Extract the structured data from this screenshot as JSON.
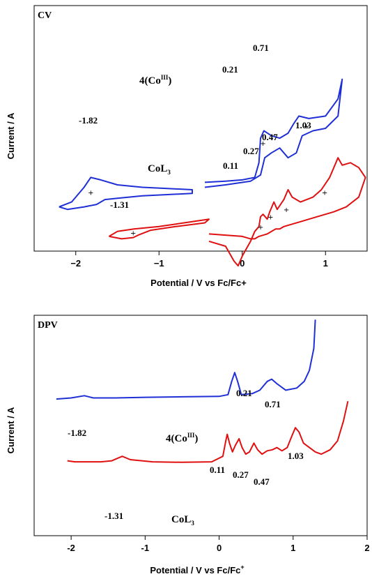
{
  "chart_data": [
    {
      "type": "line",
      "title": "CV",
      "xlabel": "Potential / V vs Fc/Fc+",
      "ylabel": "Current / A",
      "xlim": [
        -2.5,
        1.5
      ],
      "x_ticks": [
        "−2",
        "−1",
        "0",
        "1"
      ],
      "x_tick_values": [
        -2,
        -1,
        0,
        1
      ],
      "series": [
        {
          "name": "4(Co",
          "name_sup": "III",
          "name_suffix": ")",
          "color": "#1f2fd6",
          "points": [
            [
              -2.2,
              0.18
            ],
            [
              -2.05,
              0.2
            ],
            [
              -1.9,
              0.26
            ],
            [
              -1.82,
              0.3
            ],
            [
              -1.7,
              0.29
            ],
            [
              -1.5,
              0.27
            ],
            [
              -1.2,
              0.26
            ],
            [
              -0.9,
              0.255
            ],
            [
              -0.6,
              0.25
            ],
            [
              -0.6,
              0.235
            ],
            [
              -0.9,
              0.23
            ],
            [
              -1.2,
              0.225
            ],
            [
              -1.5,
              0.215
            ],
            [
              -1.65,
              0.21
            ],
            [
              -1.75,
              0.19
            ],
            [
              -1.9,
              0.18
            ],
            [
              -2.1,
              0.17
            ],
            [
              -2.2,
              0.18
            ]
          ],
          "points2": [
            [
              -0.45,
              0.28
            ],
            [
              -0.2,
              0.285
            ],
            [
              0.0,
              0.29
            ],
            [
              0.15,
              0.3
            ],
            [
              0.2,
              0.36
            ],
            [
              0.22,
              0.46
            ],
            [
              0.26,
              0.49
            ],
            [
              0.35,
              0.47
            ],
            [
              0.45,
              0.46
            ],
            [
              0.55,
              0.48
            ],
            [
              0.62,
              0.52
            ],
            [
              0.68,
              0.55
            ],
            [
              0.8,
              0.54
            ],
            [
              1.0,
              0.55
            ],
            [
              1.15,
              0.62
            ],
            [
              1.2,
              0.7
            ],
            [
              1.15,
              0.55
            ],
            [
              1.0,
              0.5
            ],
            [
              0.85,
              0.49
            ],
            [
              0.72,
              0.47
            ],
            [
              0.65,
              0.4
            ],
            [
              0.55,
              0.38
            ],
            [
              0.45,
              0.42
            ],
            [
              0.35,
              0.4
            ],
            [
              0.27,
              0.38
            ],
            [
              0.22,
              0.31
            ],
            [
              0.1,
              0.285
            ],
            [
              -0.2,
              0.27
            ],
            [
              -0.45,
              0.26
            ]
          ]
        },
        {
          "name": "CoL",
          "name_sub": "3",
          "color": "#e01010",
          "points": [
            [
              -1.6,
              0.06
            ],
            [
              -1.5,
              0.08
            ],
            [
              -1.3,
              0.09
            ],
            [
              -1.0,
              0.1
            ],
            [
              -0.7,
              0.115
            ],
            [
              -0.4,
              0.13
            ],
            [
              -0.45,
              0.115
            ],
            [
              -0.8,
              0.1
            ],
            [
              -1.1,
              0.085
            ],
            [
              -1.25,
              0.065
            ],
            [
              -1.31,
              0.055
            ],
            [
              -1.45,
              0.05
            ],
            [
              -1.6,
              0.06
            ]
          ],
          "points2": [
            [
              -0.4,
              0.04
            ],
            [
              -0.2,
              0.02
            ],
            [
              -0.1,
              -0.04
            ],
            [
              -0.05,
              -0.06
            ],
            [
              0.0,
              -0.02
            ],
            [
              0.1,
              0.04
            ],
            [
              0.15,
              0.08
            ],
            [
              0.2,
              0.1
            ],
            [
              0.22,
              0.14
            ],
            [
              0.25,
              0.15
            ],
            [
              0.3,
              0.13
            ],
            [
              0.33,
              0.16
            ],
            [
              0.38,
              0.2
            ],
            [
              0.42,
              0.17
            ],
            [
              0.5,
              0.21
            ],
            [
              0.55,
              0.25
            ],
            [
              0.6,
              0.22
            ],
            [
              0.7,
              0.2
            ],
            [
              0.85,
              0.22
            ],
            [
              0.95,
              0.25
            ],
            [
              1.05,
              0.3
            ],
            [
              1.15,
              0.38
            ],
            [
              1.2,
              0.35
            ],
            [
              1.3,
              0.36
            ],
            [
              1.4,
              0.34
            ],
            [
              1.48,
              0.3
            ],
            [
              1.4,
              0.22
            ],
            [
              1.25,
              0.18
            ],
            [
              1.1,
              0.16
            ],
            [
              0.9,
              0.14
            ],
            [
              0.7,
              0.12
            ],
            [
              0.6,
              0.11
            ],
            [
              0.5,
              0.1
            ],
            [
              0.45,
              0.09
            ],
            [
              0.4,
              0.09
            ],
            [
              0.3,
              0.07
            ],
            [
              0.2,
              0.06
            ],
            [
              0.15,
              0.05
            ],
            [
              0.1,
              0.05
            ],
            [
              0.0,
              0.06
            ],
            [
              -0.2,
              0.065
            ],
            [
              -0.4,
              0.07
            ]
          ]
        }
      ],
      "annotations": [
        "-1.82",
        "0.21",
        "0.71",
        "-1.31",
        "0.11",
        "0.27",
        "0.47",
        "1.03"
      ]
    },
    {
      "type": "line",
      "title": "DPV",
      "xlabel": "Potential / V vs Fc/Fc",
      "xlabel_sup": "+",
      "ylabel": "Current / A",
      "xlim": [
        -2.5,
        2.0
      ],
      "x_ticks": [
        "-2",
        "-1",
        "0",
        "1",
        "2"
      ],
      "x_tick_values": [
        -2,
        -1,
        0,
        1,
        2
      ],
      "series": [
        {
          "name": "4(Co",
          "name_sup": "III",
          "name_suffix": ")",
          "color": "#1f2fd6",
          "points": [
            [
              -2.2,
              0.62
            ],
            [
              -2.0,
              0.625
            ],
            [
              -1.82,
              0.635
            ],
            [
              -1.7,
              0.625
            ],
            [
              -1.4,
              0.625
            ],
            [
              -1.0,
              0.628
            ],
            [
              -0.5,
              0.63
            ],
            [
              0.0,
              0.632
            ],
            [
              0.12,
              0.64
            ],
            [
              0.17,
              0.7
            ],
            [
              0.21,
              0.74
            ],
            [
              0.25,
              0.7
            ],
            [
              0.3,
              0.64
            ],
            [
              0.45,
              0.645
            ],
            [
              0.55,
              0.66
            ],
            [
              0.65,
              0.7
            ],
            [
              0.71,
              0.71
            ],
            [
              0.78,
              0.69
            ],
            [
              0.9,
              0.66
            ],
            [
              1.05,
              0.67
            ],
            [
              1.15,
              0.7
            ],
            [
              1.22,
              0.75
            ],
            [
              1.28,
              0.85
            ],
            [
              1.3,
              0.98
            ]
          ]
        },
        {
          "name": "CoL",
          "name_sub": "3",
          "color": "#e01010",
          "points": [
            [
              -2.05,
              0.34
            ],
            [
              -1.95,
              0.335
            ],
            [
              -1.6,
              0.335
            ],
            [
              -1.45,
              0.34
            ],
            [
              -1.31,
              0.36
            ],
            [
              -1.2,
              0.345
            ],
            [
              -0.9,
              0.335
            ],
            [
              -0.5,
              0.333
            ],
            [
              -0.1,
              0.335
            ],
            [
              0.05,
              0.36
            ],
            [
              0.09,
              0.43
            ],
            [
              0.11,
              0.46
            ],
            [
              0.14,
              0.42
            ],
            [
              0.18,
              0.38
            ],
            [
              0.22,
              0.41
            ],
            [
              0.27,
              0.44
            ],
            [
              0.31,
              0.4
            ],
            [
              0.36,
              0.37
            ],
            [
              0.41,
              0.38
            ],
            [
              0.47,
              0.42
            ],
            [
              0.52,
              0.39
            ],
            [
              0.58,
              0.37
            ],
            [
              0.65,
              0.385
            ],
            [
              0.72,
              0.39
            ],
            [
              0.78,
              0.4
            ],
            [
              0.85,
              0.385
            ],
            [
              0.92,
              0.4
            ],
            [
              0.98,
              0.45
            ],
            [
              1.03,
              0.49
            ],
            [
              1.08,
              0.47
            ],
            [
              1.14,
              0.42
            ],
            [
              1.22,
              0.4
            ],
            [
              1.3,
              0.38
            ],
            [
              1.38,
              0.37
            ],
            [
              1.5,
              0.39
            ],
            [
              1.6,
              0.43
            ],
            [
              1.68,
              0.52
            ],
            [
              1.74,
              0.61
            ]
          ]
        }
      ],
      "annotations": [
        "-1.82",
        "0.21",
        "0.71",
        "-1.31",
        "0.11",
        "0.27",
        "0.47",
        "1.03"
      ]
    }
  ]
}
